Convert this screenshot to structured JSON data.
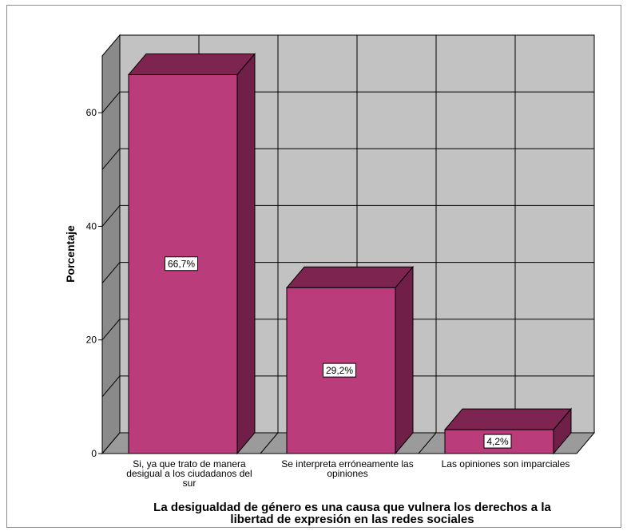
{
  "chart_data": {
    "type": "bar",
    "categories": [
      [
        "Si, ya que trato de manera",
        "desigual a los ciudadanos del",
        "sur"
      ],
      [
        "Se interpreta erróneamente las",
        "opiniones"
      ],
      [
        "Las opiniones son imparciales"
      ]
    ],
    "values": [
      66.7,
      29.2,
      4.2
    ],
    "data_labels": [
      "66,7%",
      "29,2%",
      "4,2%"
    ],
    "ylabel": "Porcentaje",
    "xlabel": [
      "La desigualdad de género es una causa que vulnera los derechos a la",
      "libertad de expresión en las redes sociales"
    ],
    "ylim": [
      0,
      70
    ],
    "yticks": [
      0,
      20,
      40,
      60
    ],
    "grid": true,
    "three_d": true,
    "colors": {
      "bar_front": "#bb3c7b",
      "bar_top": "#7d2450",
      "bar_side": "#6f1f48",
      "wall_back": "#c2c2c2",
      "wall_side": "#8a8a8a",
      "floor": "#9b9b9b"
    }
  }
}
